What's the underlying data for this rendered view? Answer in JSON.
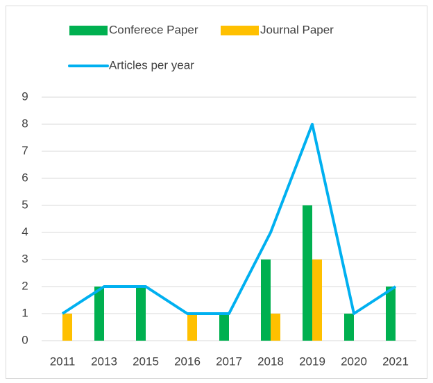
{
  "chart_data": {
    "type": "combo",
    "categories": [
      "2011",
      "2013",
      "2015",
      "2016",
      "2017",
      "2018",
      "2019",
      "2020",
      "2021"
    ],
    "series": [
      {
        "name": "Conferece Paper",
        "type": "bar",
        "color": "#00b050",
        "values": [
          0,
          2,
          2,
          0,
          1,
          3,
          5,
          1,
          2
        ]
      },
      {
        "name": "Journal Paper",
        "type": "bar",
        "color": "#ffc000",
        "values": [
          1,
          0,
          0,
          1,
          0,
          1,
          3,
          0,
          0
        ]
      },
      {
        "name": "Articles per year",
        "type": "line",
        "color": "#00b0f0",
        "values": [
          1,
          2,
          2,
          1,
          1,
          4,
          8,
          1,
          2
        ]
      }
    ],
    "ylim": [
      0,
      9
    ],
    "yticks": [
      0,
      1,
      2,
      3,
      4,
      5,
      6,
      7,
      8,
      9
    ],
    "grid": true,
    "legend": "top"
  }
}
